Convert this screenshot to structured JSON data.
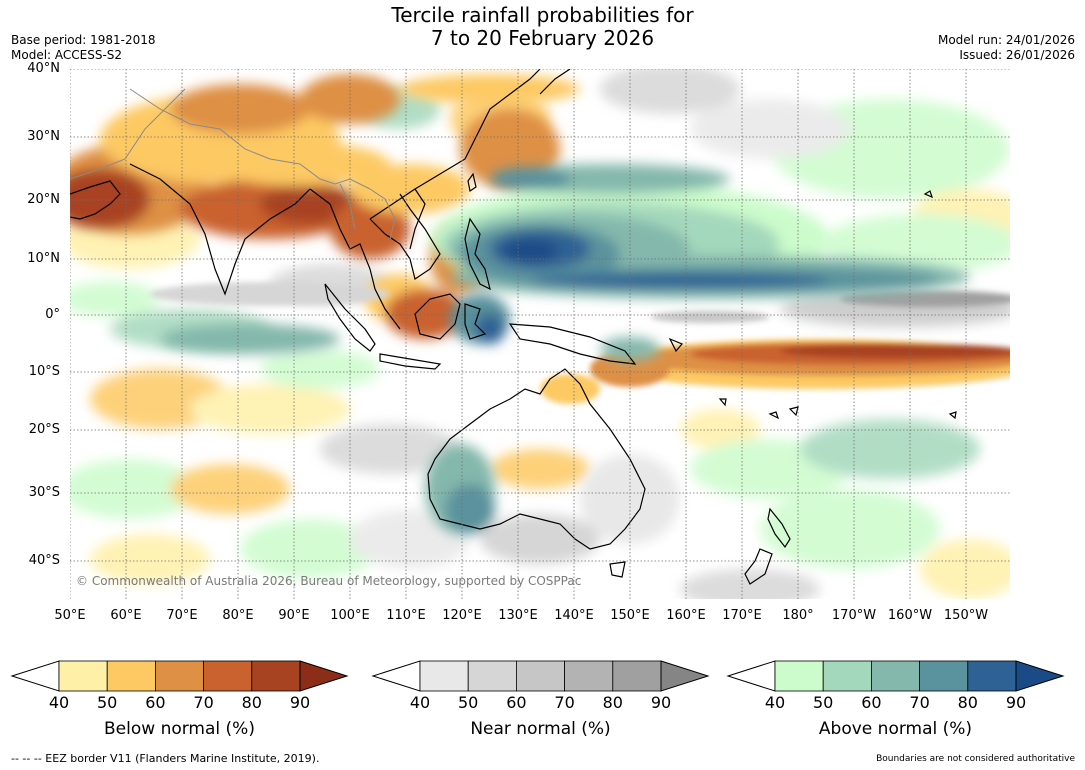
{
  "title_line1": "Tercile rainfall probabilities for",
  "title_line2": "7 to 20 February 2026",
  "base_period": "Base period: 1981-2018",
  "model": "Model: ACCESS-S2",
  "model_run": "Model run: 24/01/2026",
  "issued": "Issued: 26/01/2026",
  "copyright": "© Commonwealth of Australia 2026, Bureau of Meteorology, supported by COSPPac",
  "lat_labels": [
    "40°N",
    "30°N",
    "20°N",
    "10°N",
    "0°",
    "10°S",
    "20°S",
    "30°S",
    "40°S"
  ],
  "lat_values": [
    40,
    30,
    20,
    10,
    0,
    -10,
    -20,
    -30,
    -40
  ],
  "lon_labels": [
    "50°E",
    "60°E",
    "70°E",
    "80°E",
    "90°E",
    "100°E",
    "110°E",
    "120°E",
    "130°E",
    "140°E",
    "150°E",
    "160°E",
    "170°E",
    "180°",
    "170°W",
    "160°W",
    "150°W"
  ],
  "lon_values": [
    50,
    60,
    70,
    80,
    90,
    100,
    110,
    120,
    130,
    140,
    150,
    160,
    170,
    180,
    190,
    200,
    210
  ],
  "colorbars": [
    {
      "id": "below",
      "title": "Below normal (%)",
      "ticks": [
        "40",
        "50",
        "60",
        "70",
        "80",
        "90"
      ],
      "colors": [
        "#fff0a8",
        "#fdc963",
        "#de9045",
        "#c9622f",
        "#a84322"
      ],
      "extend_color": "#8c2e17"
    },
    {
      "id": "near",
      "title": "Near normal (%)",
      "ticks": [
        "40",
        "50",
        "60",
        "70",
        "80",
        "90"
      ],
      "colors": [
        "#e8e8e8",
        "#d6d6d6",
        "#c6c6c6",
        "#b3b3b3",
        "#a0a0a0"
      ],
      "extend_color": "#858585"
    },
    {
      "id": "above",
      "title": "Above normal (%)",
      "ticks": [
        "40",
        "50",
        "60",
        "70",
        "80",
        "90"
      ],
      "colors": [
        "#ccfccc",
        "#a4d8bc",
        "#84b8ac",
        "#5a929d",
        "#2f6294"
      ],
      "extend_color": "#1a4b86"
    }
  ],
  "eez_note": "--  --  -- EEZ border V11 (Flanders Marine Institute, 2019).",
  "disclaimer": "Boundaries are not considered authoritative"
}
